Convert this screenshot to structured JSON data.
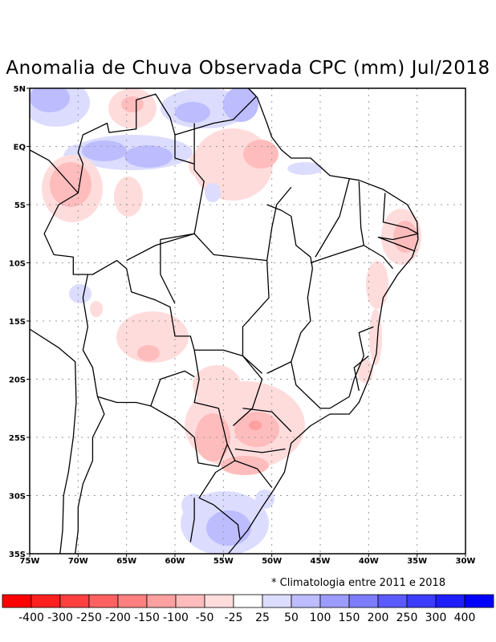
{
  "title": "Anomalia de Chuva Observada CPC (mm) Jul/2018",
  "note": "* Climatologia entre 2011 e 2018",
  "map": {
    "lon_range": [
      -75,
      -30
    ],
    "lat_range": [
      -35,
      5
    ],
    "lat_labels": [
      "5N",
      "EQ",
      "5S",
      "10S",
      "15S",
      "20S",
      "25S",
      "30S",
      "35S"
    ],
    "lon_labels": [
      "75W",
      "70W",
      "65W",
      "60W",
      "55W",
      "50W",
      "45W",
      "40W",
      "35W",
      "30W"
    ]
  },
  "colorbar": {
    "labels": [
      "-400",
      "-300",
      "-250",
      "-200",
      "-150",
      "-100",
      "-50",
      "-25",
      "25",
      "50",
      "100",
      "150",
      "200",
      "250",
      "300",
      "400"
    ],
    "colors": [
      "#ff0000",
      "#ff2020",
      "#ff4040",
      "#ff6060",
      "#ff8080",
      "#ffa0a0",
      "#ffbcbc",
      "#ffdcdc",
      "#ffffff",
      "#dcdcff",
      "#bcbcff",
      "#9c9cff",
      "#7c7cff",
      "#5a5aff",
      "#3c3cff",
      "#1e1eff",
      "#0000ff"
    ]
  }
}
